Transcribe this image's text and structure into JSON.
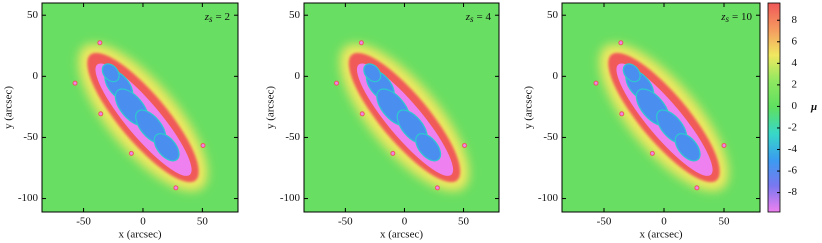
{
  "chart_data": [
    {
      "type": "image",
      "annotation": {
        "var": "z",
        "sub": "s",
        "text": "= 2"
      },
      "xlabel": "x (arcsec)",
      "ylabel": "y (arcsec)",
      "xlim": [
        -85,
        80
      ],
      "ylim": [
        -111,
        60
      ],
      "xticks": [
        -50,
        0,
        50
      ],
      "yticks": [
        50,
        0,
        -50,
        -100
      ]
    },
    {
      "type": "image",
      "annotation": {
        "var": "z",
        "sub": "s",
        "text": "= 4"
      },
      "xlabel": "x (arcsec)",
      "ylabel": "y (arcsec)",
      "xlim": [
        -85,
        80
      ],
      "ylim": [
        -111,
        60
      ],
      "xticks": [
        -50,
        0,
        50
      ],
      "yticks": [
        50,
        0,
        -50,
        -100
      ]
    },
    {
      "type": "image",
      "annotation": {
        "var": "z",
        "sub": "s",
        "text": "= 10"
      },
      "xlabel": "x (arcsec)",
      "ylabel": "y (arcsec)",
      "xlim": [
        -85,
        80
      ],
      "ylim": [
        -111,
        60
      ],
      "xticks": [
        -50,
        0,
        50
      ],
      "yticks": [
        50,
        0,
        -50,
        -100
      ]
    },
    {
      "type": "colorbar",
      "label": "μ",
      "ylim": [
        -9.8,
        9.6
      ],
      "yticks": [
        8,
        6,
        4,
        2,
        0,
        -2,
        -4,
        -6,
        -8
      ],
      "colors": [
        "#ee80f0",
        "#7a78f0",
        "#3a9cf0",
        "#38d8c8",
        "#5ee060",
        "#8ee860",
        "#f0e860",
        "#f59a60",
        "#f05858"
      ]
    }
  ]
}
